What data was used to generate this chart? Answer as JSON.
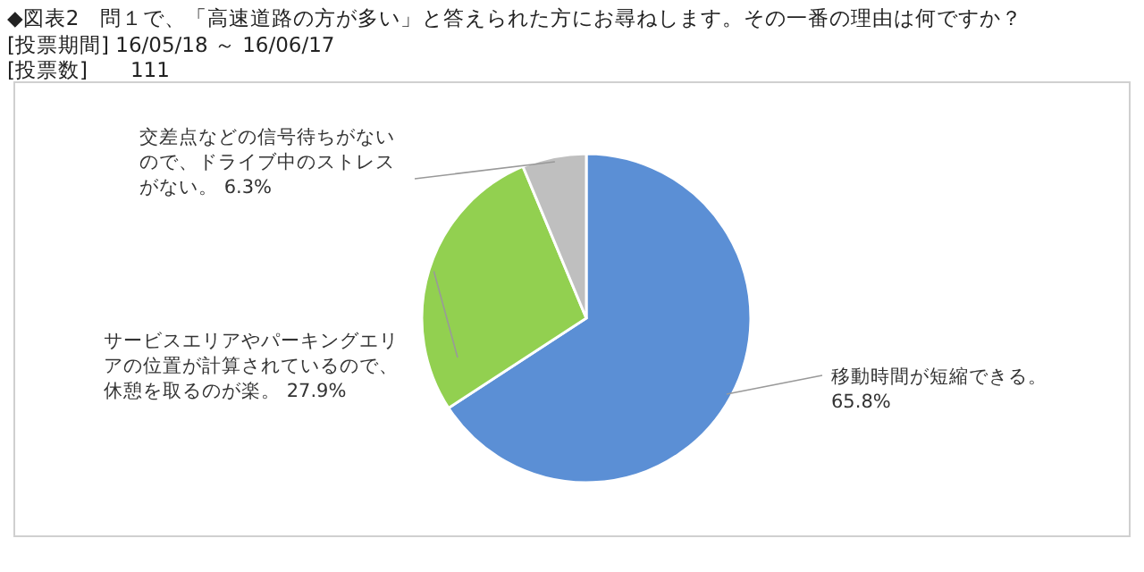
{
  "chart_data": {
    "type": "pie",
    "title": "◆図表2　問１で、「高速道路の方が多い」と答えられた方にお尋ねします。その一番の理由は何ですか？",
    "annotations": [
      "[投票期間] 16/05/18 ～ 16/06/17",
      "[投票数]　　111"
    ],
    "categories": [
      "移動時間が短縮できる。",
      "サービスエリアやパーキングエリアの位置が計算されているので、休憩を取るのが楽。",
      "交差点などの信号待ちがないので、ドライブ中のストレスがない。"
    ],
    "values": [
      65.8,
      27.9,
      6.3
    ],
    "value_labels": [
      "65.8%",
      "27.9%",
      "6.3%"
    ],
    "colors": [
      "#5b8fd5",
      "#92d050",
      "#bfbfbf"
    ]
  }
}
